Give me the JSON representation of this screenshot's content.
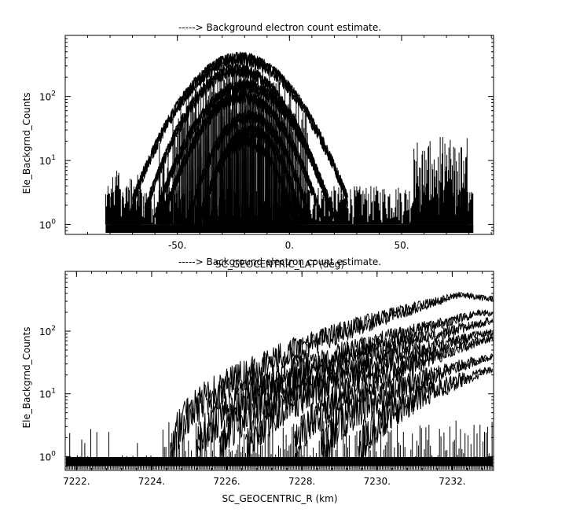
{
  "chart_data": [
    {
      "type": "line",
      "title": "-----> Background electron count estimate.",
      "xlabel": "SC_GEOCENTRIC_LAT (deg)",
      "ylabel": "Ele_Backgrnd_Counts",
      "xlim": [
        -100,
        91
      ],
      "ylim": [
        0.7,
        900
      ],
      "yscale": "log",
      "x_ticks": [
        {
          "value": -50,
          "label": "-50."
        },
        {
          "value": 0,
          "label": "0."
        },
        {
          "value": 50,
          "label": "50."
        }
      ],
      "y_ticks": [
        {
          "value": 1,
          "base": "10",
          "exp": "0"
        },
        {
          "value": 10,
          "base": "10",
          "exp": "1"
        },
        {
          "value": 100,
          "base": "10",
          "exp": "2"
        }
      ],
      "data_x_range": [
        -82,
        82
      ],
      "noise_floor": [
        1,
        4
      ],
      "peak_curves": [
        {
          "center": -22,
          "width": 15,
          "peak": 400
        },
        {
          "center": -23,
          "width": 13,
          "peak": 260
        },
        {
          "center": -20,
          "width": 13,
          "peak": 150
        },
        {
          "center": -21,
          "width": 12,
          "peak": 100
        },
        {
          "center": -18,
          "width": 10,
          "peak": 50
        },
        {
          "center": -17,
          "width": 9,
          "peak": 30
        },
        {
          "center": -19,
          "width": 9,
          "peak": 20
        }
      ],
      "spike_clusters": [
        {
          "range": [
            -58,
            -54
          ],
          "max": 25
        },
        {
          "range": [
            54,
            80
          ],
          "max": 25
        },
        {
          "range": [
            -80,
            -66
          ],
          "max": 8
        }
      ],
      "grid": false,
      "legend": "none"
    },
    {
      "type": "line",
      "title": "-----> Background electron count estimate.",
      "xlabel": "SC_GEOCENTRIC_R (km)",
      "ylabel": "Ele_Backgrnd_Counts",
      "xlim": [
        7221.7,
        7233.1
      ],
      "ylim": [
        0.6,
        900
      ],
      "yscale": "log",
      "x_ticks": [
        {
          "value": 7222,
          "label": "7222."
        },
        {
          "value": 7224,
          "label": "7224."
        },
        {
          "value": 7226,
          "label": "7226."
        },
        {
          "value": 7228,
          "label": "7228."
        },
        {
          "value": 7230,
          "label": "7230."
        },
        {
          "value": 7232,
          "label": "7232."
        }
      ],
      "y_ticks": [
        {
          "value": 1,
          "base": "10",
          "exp": "0"
        },
        {
          "value": 10,
          "base": "10",
          "exp": "1"
        },
        {
          "value": 100,
          "base": "10",
          "exp": "2"
        }
      ],
      "curves": [
        {
          "start": 7224.5,
          "end": 7233.1,
          "value_at_end": 380,
          "peak_x": 7232.2
        },
        {
          "start": 7225.2,
          "end": 7233.1,
          "value_at_end": 200,
          "peak_x": 7232.8
        },
        {
          "start": 7225.8,
          "end": 7233.1,
          "value_at_end": 150,
          "peak_x": 7233.1
        },
        {
          "start": 7226.5,
          "end": 7233.1,
          "value_at_end": 100,
          "peak_x": 7233.1
        },
        {
          "start": 7227.8,
          "end": 7233.1,
          "value_at_end": 80,
          "peak_x": 7233.1
        },
        {
          "start": 7228.5,
          "end": 7233.1,
          "value_at_end": 40,
          "peak_x": 7233.1
        },
        {
          "start": 7229.5,
          "end": 7233.1,
          "value_at_end": 25,
          "peak_x": 7233.1
        }
      ],
      "grid": false,
      "legend": "none"
    }
  ]
}
